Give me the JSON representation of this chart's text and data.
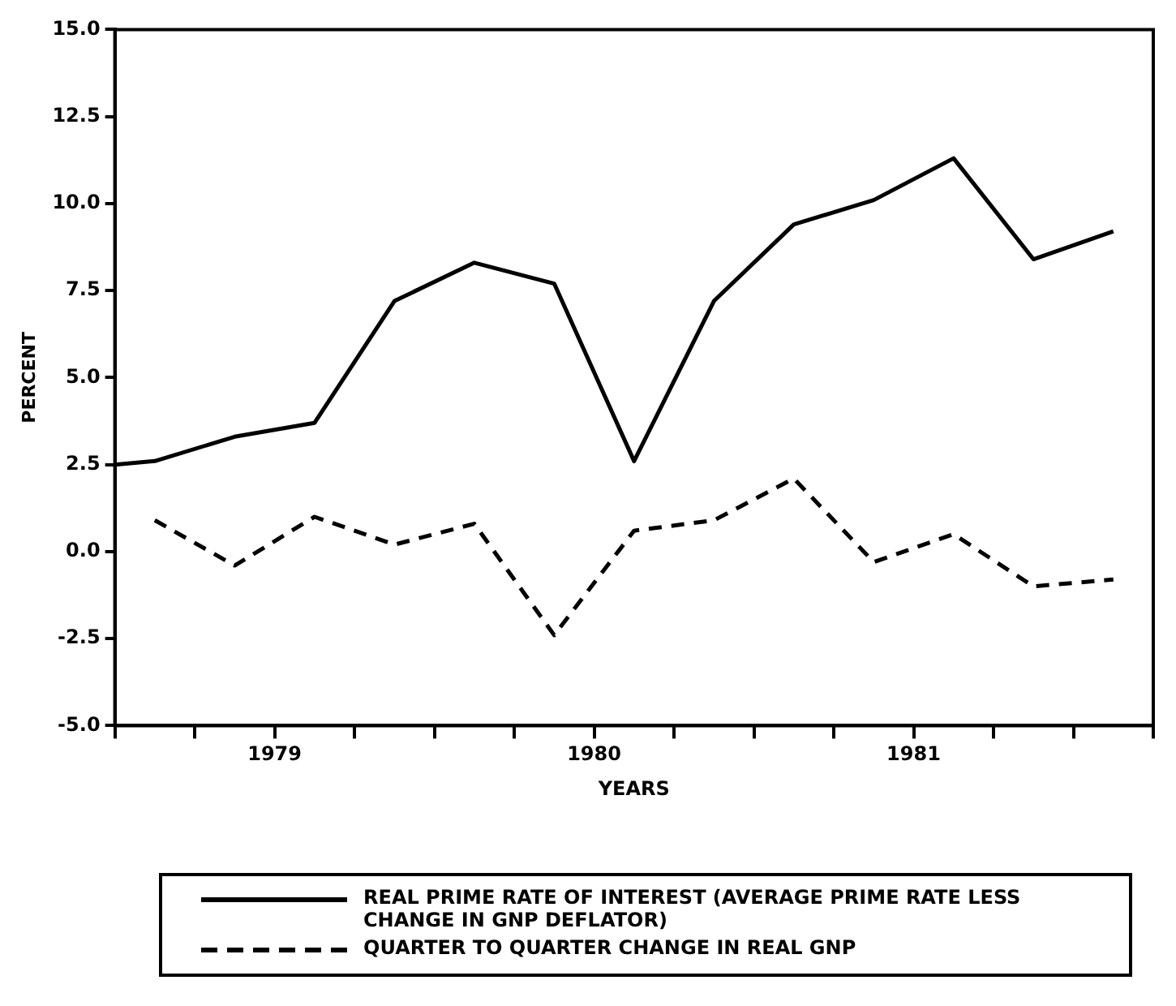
{
  "chart_data": {
    "type": "line",
    "xlabel": "YEARS",
    "ylabel": "PERCENT",
    "x": [
      1978.5,
      1978.625,
      1978.875,
      1979.125,
      1979.375,
      1979.625,
      1979.875,
      1980.125,
      1980.375,
      1980.625,
      1980.875,
      1981.125,
      1981.375,
      1981.625
    ],
    "series": [
      {
        "name": "REAL PRIME RATE OF INTEREST (AVERAGE PRIME RATE LESS CHANGE IN GNP DEFLATOR)",
        "color": "#000000",
        "line_style": "solid",
        "values": [
          2.5,
          2.6,
          3.3,
          3.7,
          7.2,
          8.3,
          7.7,
          2.6,
          7.2,
          9.4,
          10.1,
          11.3,
          8.4,
          9.2
        ]
      },
      {
        "name": "QUARTER TO QUARTER CHANGE IN REAL GNP",
        "color": "#000000",
        "line_style": "dashed",
        "values": [
          null,
          0.9,
          -0.4,
          1.0,
          0.2,
          0.8,
          -2.4,
          0.6,
          0.9,
          2.1,
          -0.3,
          0.5,
          -1.0,
          -0.8
        ]
      }
    ],
    "xlim": [
      1978.5,
      1981.75
    ],
    "xticks": [
      {
        "value": 1978.5,
        "label": null
      },
      {
        "value": 1978.75,
        "label": null
      },
      1979,
      {
        "value": 1979.25,
        "label": null
      },
      {
        "value": 1979.5,
        "label": null
      },
      {
        "value": 1979.75,
        "label": null
      },
      1980,
      {
        "value": 1980.25,
        "label": null
      },
      {
        "value": 1980.5,
        "label": null
      },
      {
        "value": 1980.75,
        "label": null
      },
      1981,
      {
        "value": 1981.25,
        "label": null
      },
      {
        "value": 1981.5,
        "label": null
      },
      {
        "value": 1981.75,
        "label": null
      }
    ],
    "ylim": [
      -5,
      15
    ],
    "yticks": [
      {
        "value": -5,
        "label": "-5.0"
      },
      -2.5,
      {
        "value": 0,
        "label": "0.0"
      },
      2.5,
      {
        "value": 5,
        "label": "5.0"
      },
      7.5,
      {
        "value": 10,
        "label": "10.0"
      },
      12.5,
      {
        "value": 15,
        "label": "15.0"
      }
    ],
    "grid": false,
    "legend": "bottom"
  }
}
